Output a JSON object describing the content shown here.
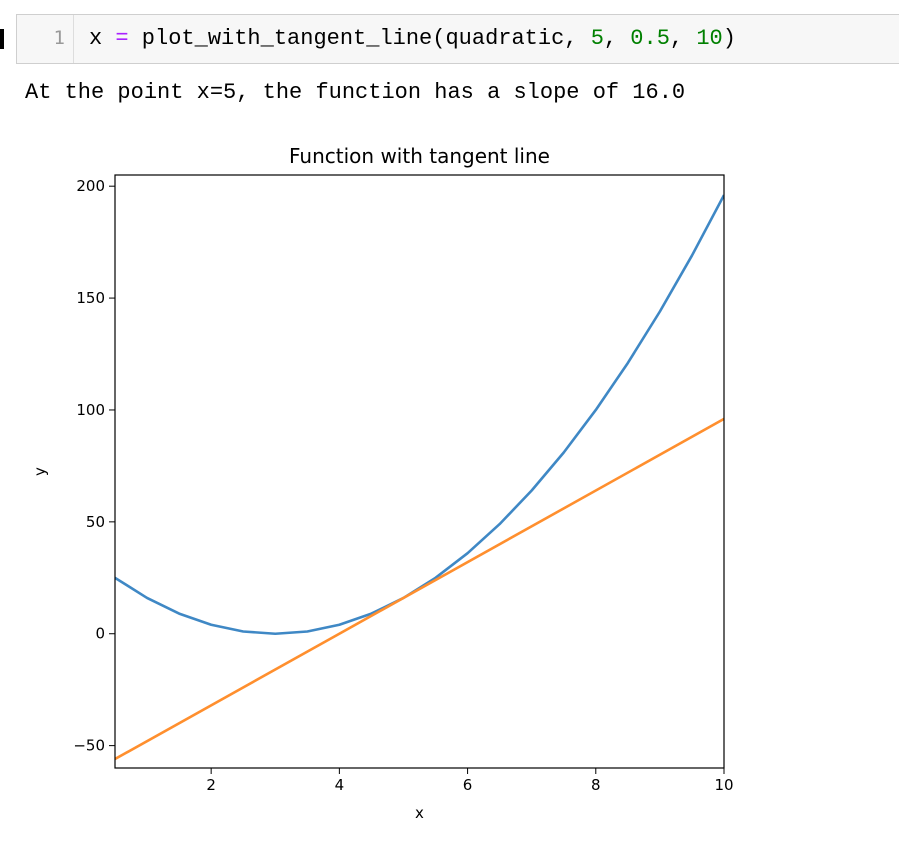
{
  "cell": {
    "line_number": "1",
    "code_tokens": [
      {
        "text": "x ",
        "kind": "plain"
      },
      {
        "text": "=",
        "kind": "op"
      },
      {
        "text": " plot_with_tangent_line(quadratic, ",
        "kind": "plain"
      },
      {
        "text": "5",
        "kind": "num"
      },
      {
        "text": ", ",
        "kind": "plain"
      },
      {
        "text": "0.5",
        "kind": "num"
      },
      {
        "text": ", ",
        "kind": "plain"
      },
      {
        "text": "10",
        "kind": "num"
      },
      {
        "text": ")",
        "kind": "plain"
      }
    ]
  },
  "output": {
    "text": "At the point x=5, the function has a slope of 16.0"
  },
  "chart_data": {
    "type": "line",
    "title": "Function with tangent line",
    "xlabel": "x",
    "ylabel": "y",
    "xlim": [
      0.5,
      10
    ],
    "ylim": [
      -60,
      205
    ],
    "xticks": [
      2,
      4,
      6,
      8,
      10
    ],
    "yticks": [
      -50,
      0,
      50,
      100,
      150,
      200
    ],
    "grid": false,
    "series": [
      {
        "color": "#3f88c5",
        "x": [
          0.5,
          1,
          1.5,
          2,
          2.5,
          3,
          3.5,
          4,
          4.5,
          5,
          5.5,
          6,
          6.5,
          7,
          7.5,
          8,
          8.5,
          9,
          9.5,
          10
        ],
        "y": [
          25,
          16,
          9,
          4,
          1,
          0,
          1,
          4,
          9,
          16,
          25,
          36,
          49,
          64,
          81,
          100,
          121,
          144,
          169,
          196
        ]
      },
      {
        "color": "#ff8f2e",
        "x": [
          0.5,
          10
        ],
        "y": [
          -56,
          96
        ]
      }
    ]
  }
}
